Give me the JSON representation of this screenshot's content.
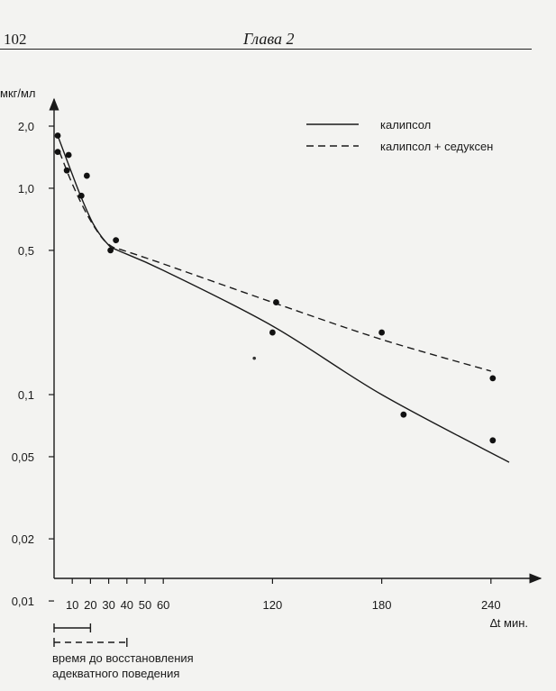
{
  "page": {
    "number": "102",
    "running_head": "Глава 2"
  },
  "chart_data": {
    "type": "line",
    "y_scale": "log",
    "ylabel": "мкг/мл",
    "xlabel": "∆t мин.",
    "ylim": [
      0.01,
      2.0
    ],
    "xlim": [
      0,
      250
    ],
    "y_ticks": [
      {
        "value": 2.0,
        "label": "2,0"
      },
      {
        "value": 1.0,
        "label": "1,0"
      },
      {
        "value": 0.5,
        "label": "0,5"
      },
      {
        "value": 0.1,
        "label": "0,1"
      },
      {
        "value": 0.05,
        "label": "0,05"
      },
      {
        "value": 0.02,
        "label": "0,02"
      },
      {
        "value": 0.01,
        "label": "0,01"
      }
    ],
    "x_ticks": [
      {
        "value": 10,
        "label": "10"
      },
      {
        "value": 20,
        "label": "20"
      },
      {
        "value": 30,
        "label": "30"
      },
      {
        "value": 40,
        "label": "40"
      },
      {
        "value": 50,
        "label": "50"
      },
      {
        "value": 60,
        "label": "60"
      },
      {
        "value": 120,
        "label": "120"
      },
      {
        "value": 180,
        "label": "180"
      },
      {
        "value": 240,
        "label": "240"
      }
    ],
    "legend": {
      "placement": "top-right",
      "entries": [
        {
          "label": "калипсол",
          "style": "solid"
        },
        {
          "label": "калипсол + седуксен",
          "style": "dashed"
        }
      ]
    },
    "series": [
      {
        "name": "калипсол",
        "style": "solid",
        "curve": [
          [
            2,
            1.8
          ],
          [
            8,
            1.3
          ],
          [
            15,
            0.9
          ],
          [
            22,
            0.66
          ],
          [
            30,
            0.53
          ],
          [
            35,
            0.5
          ],
          [
            60,
            0.4
          ],
          [
            120,
            0.215
          ],
          [
            180,
            0.1
          ],
          [
            250,
            0.047
          ]
        ],
        "points": [
          [
            2,
            1.8
          ],
          [
            8,
            1.45
          ],
          [
            18,
            1.15
          ],
          [
            31,
            0.5
          ],
          [
            120,
            0.2
          ],
          [
            192,
            0.08
          ],
          [
            241,
            0.06
          ]
        ]
      },
      {
        "name": "калипсол + седуксен",
        "style": "dashed",
        "curve": [
          [
            3,
            1.5
          ],
          [
            10,
            1.05
          ],
          [
            18,
            0.75
          ],
          [
            26,
            0.58
          ],
          [
            32,
            0.52
          ],
          [
            38,
            0.5
          ],
          [
            60,
            0.43
          ],
          [
            120,
            0.28
          ],
          [
            180,
            0.185
          ],
          [
            240,
            0.13
          ]
        ],
        "points": [
          [
            2,
            1.5
          ],
          [
            7,
            1.22
          ],
          [
            15,
            0.92
          ],
          [
            34,
            0.56
          ],
          [
            122,
            0.28
          ],
          [
            180,
            0.2
          ],
          [
            241,
            0.12
          ]
        ]
      }
    ],
    "recovery_bars": {
      "caption_lines": [
        "время до восстановления",
        "адекватного поведения"
      ],
      "bars": [
        {
          "style": "solid",
          "from": 0,
          "to": 20
        },
        {
          "style": "dashed",
          "from": 0,
          "to": 40
        }
      ]
    },
    "stray_points": [
      [
        110,
        0.15
      ]
    ]
  }
}
